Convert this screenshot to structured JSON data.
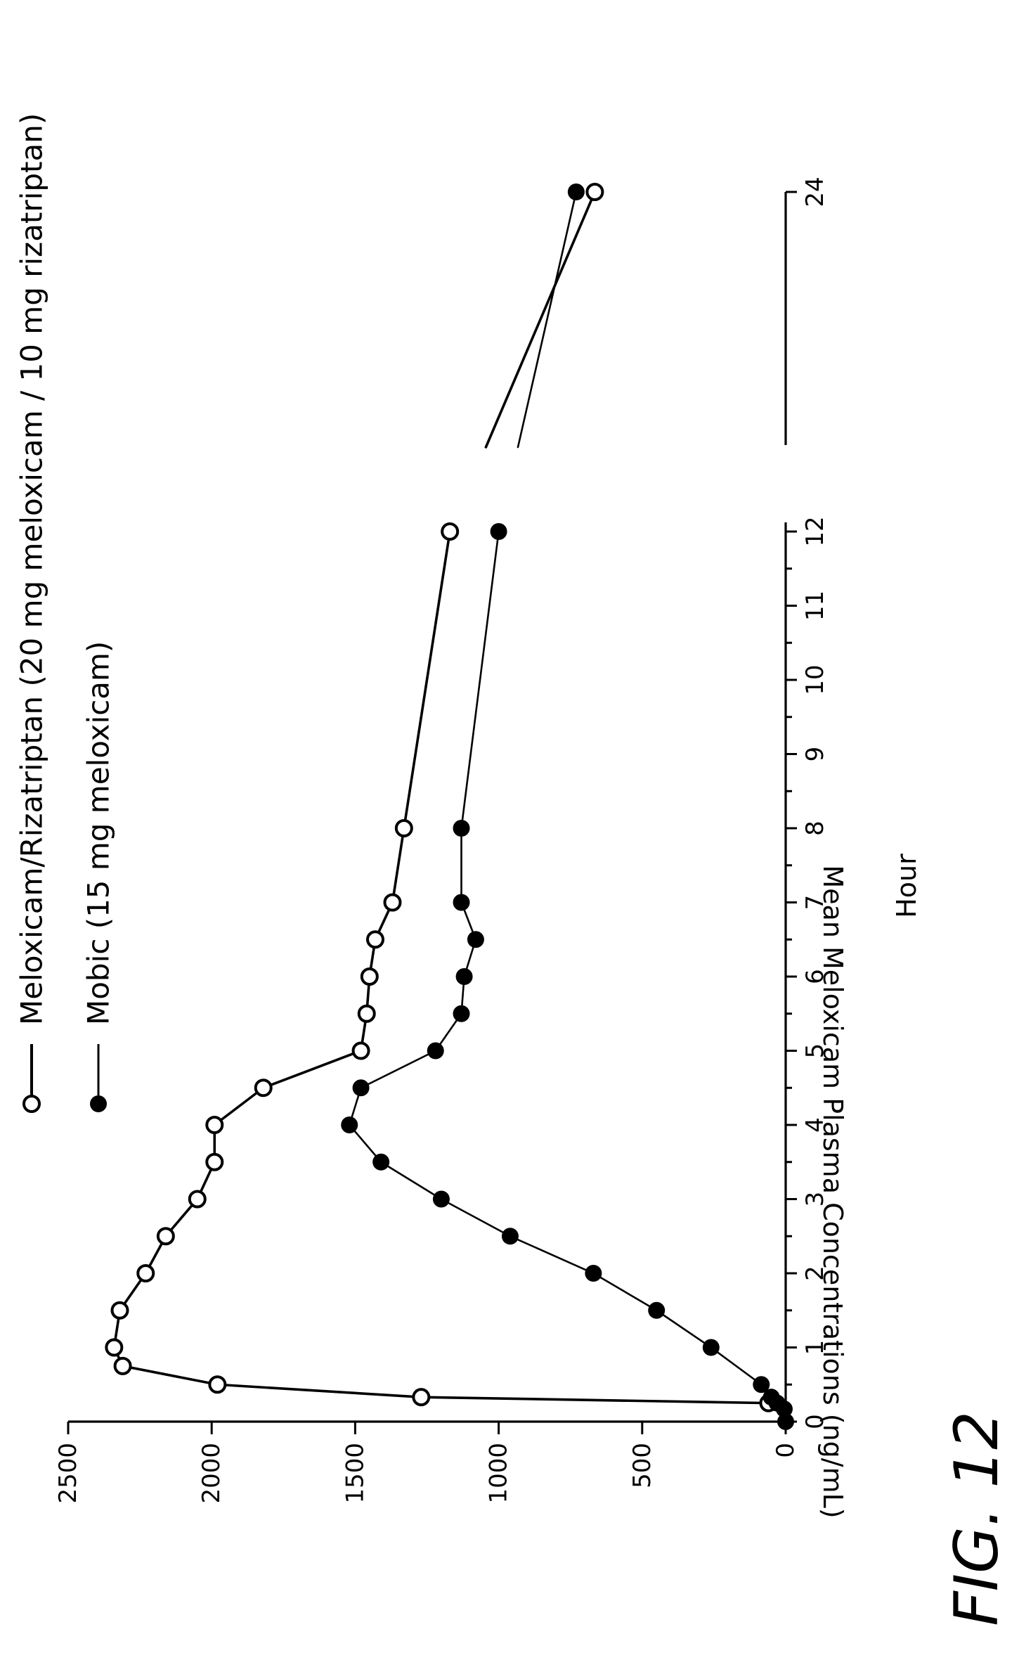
{
  "figure_label": "FIG. 12",
  "chart_data": {
    "type": "line",
    "ylabel": "Mean Meloxicam Plasma Concentrations (ng/mL)",
    "xlabel": "Hour",
    "ylim": [
      0,
      2500
    ],
    "xlim": [
      0,
      24
    ],
    "x_axis_break": "between 12 and 24",
    "grid": false,
    "legend_position": "top",
    "y_ticks": [
      "0",
      "500",
      "1000",
      "1500",
      "2000",
      "2500"
    ],
    "x_ticks": [
      "0",
      "1",
      "2",
      "3",
      "4",
      "5",
      "6",
      "7",
      "8",
      "9",
      "10",
      "11",
      "12",
      "24"
    ],
    "series": [
      {
        "name": "Meloxicam/Rizatriptan (20 mg meloxicam / 10 mg rizatriptan)",
        "marker": "open-circle",
        "x": [
          0.25,
          0.33,
          0.5,
          0.75,
          1,
          1.5,
          2,
          2.5,
          3,
          3.5,
          4,
          4.5,
          5,
          5.5,
          6,
          6.5,
          7,
          8,
          12,
          24
        ],
        "values": [
          60,
          1270,
          1980,
          2310,
          2340,
          2320,
          2230,
          2160,
          2050,
          1990,
          1990,
          1820,
          1480,
          1460,
          1450,
          1430,
          1370,
          1330,
          1170,
          665
        ]
      },
      {
        "name": "Mobic (15 mg meloxicam)",
        "marker": "filled-circle",
        "x": [
          0,
          0.17,
          0.25,
          0.33,
          0.5,
          1,
          1.5,
          2,
          2.5,
          3,
          3.5,
          4,
          4.5,
          5,
          5.5,
          6,
          6.5,
          7,
          8,
          12,
          24
        ],
        "values": [
          0,
          5,
          30,
          50,
          85,
          260,
          450,
          670,
          960,
          1200,
          1410,
          1520,
          1480,
          1220,
          1130,
          1120,
          1080,
          1130,
          1130,
          1000,
          730
        ]
      }
    ]
  }
}
